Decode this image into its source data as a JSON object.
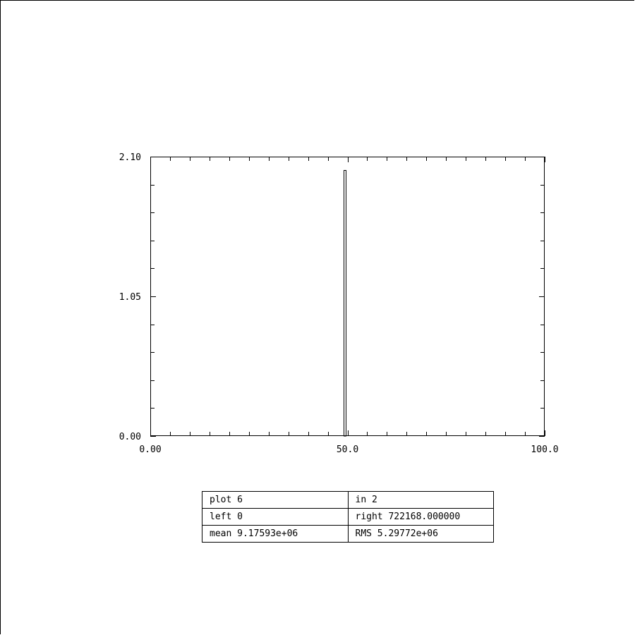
{
  "chart_data": {
    "type": "bar",
    "title": "",
    "xlabel": "",
    "ylabel": "",
    "xlim": [
      0,
      100
    ],
    "ylim": [
      0,
      2.1
    ],
    "x_tick_labels": [
      "0.00",
      "50.0",
      "100.0"
    ],
    "y_tick_labels": [
      "0.00",
      "1.05",
      "2.10"
    ],
    "bins": [
      {
        "x_start": 49.0,
        "x_end": 49.5,
        "value": 2
      }
    ],
    "grid": false
  },
  "stats": {
    "plot_label": "plot 6",
    "in_label": "in 2",
    "left_label": "left 0",
    "right_label": "right 722168.000000",
    "mean_label": "mean 9.17593e+06",
    "rms_label": "RMS 5.29772e+06"
  }
}
